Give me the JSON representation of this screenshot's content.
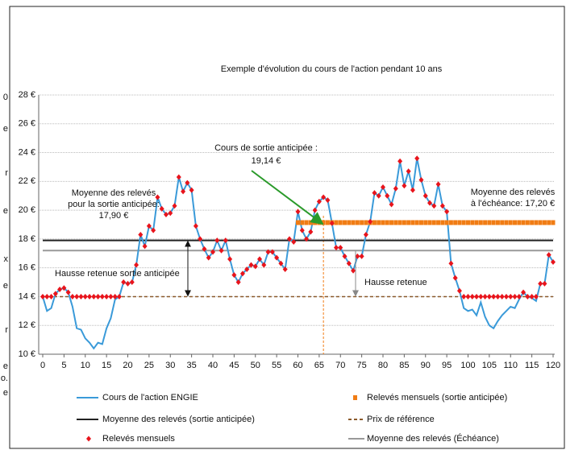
{
  "side_fragments": [
    "0",
    "e",
    "r",
    "e",
    "x",
    "e",
    "r",
    "e",
    "o.",
    "e"
  ],
  "chart_data": {
    "type": "line",
    "title": "Exemple d'évolution du cours de l'action pendant 10 ans",
    "x": [
      0,
      1,
      2,
      3,
      4,
      5,
      6,
      7,
      8,
      9,
      10,
      11,
      12,
      13,
      14,
      15,
      16,
      17,
      18,
      19,
      20,
      21,
      22,
      23,
      24,
      25,
      26,
      27,
      28,
      29,
      30,
      31,
      32,
      33,
      34,
      35,
      36,
      37,
      38,
      39,
      40,
      41,
      42,
      43,
      44,
      45,
      46,
      47,
      48,
      49,
      50,
      51,
      52,
      53,
      54,
      55,
      56,
      57,
      58,
      59,
      60,
      61,
      62,
      63,
      64,
      65,
      66,
      67,
      68,
      69,
      70,
      71,
      72,
      73,
      74,
      75,
      76,
      77,
      78,
      79,
      80,
      81,
      82,
      83,
      84,
      85,
      86,
      87,
      88,
      89,
      90,
      91,
      92,
      93,
      94,
      95,
      96,
      97,
      98,
      99,
      100,
      101,
      102,
      103,
      104,
      105,
      106,
      107,
      108,
      109,
      110,
      111,
      112,
      113,
      114,
      115,
      116,
      117,
      118,
      119,
      120
    ],
    "xlim": [
      0,
      120
    ],
    "xticks": [
      0,
      5,
      10,
      15,
      20,
      25,
      30,
      35,
      40,
      45,
      50,
      55,
      60,
      65,
      70,
      75,
      80,
      85,
      90,
      95,
      100,
      105,
      110,
      115,
      120
    ],
    "ylim": [
      10,
      28
    ],
    "yticks": [
      {
        "value": 10,
        "label": "10 €"
      },
      {
        "value": 12,
        "label": "12 €"
      },
      {
        "value": 14,
        "label": "14 €"
      },
      {
        "value": 16,
        "label": "16 €"
      },
      {
        "value": 18,
        "label": "18 €"
      },
      {
        "value": 20,
        "label": "20 €"
      },
      {
        "value": 22,
        "label": "22 €"
      },
      {
        "value": 24,
        "label": "24 €"
      },
      {
        "value": 26,
        "label": "26 €"
      },
      {
        "value": 28,
        "label": "28 €"
      }
    ],
    "grid": true,
    "exit_month": 66,
    "series": [
      {
        "name": "Cours de l'action ENGIE",
        "color": "#3a9ad9",
        "style": "line",
        "values": [
          14,
          13,
          13.2,
          14.2,
          14.5,
          14.6,
          14.3,
          13.3,
          11.8,
          11.7,
          11.1,
          10.8,
          10.4,
          10.8,
          10.7,
          11.8,
          12.5,
          13.8,
          14.0,
          15.0,
          14.9,
          15.0,
          16.2,
          18.3,
          17.5,
          18.9,
          18.6,
          20.9,
          20.1,
          19.7,
          19.8,
          20.3,
          22.3,
          21.3,
          21.9,
          21.4,
          18.9,
          18.0,
          17.3,
          16.7,
          17.1,
          17.9,
          17.2,
          17.9,
          16.6,
          15.5,
          15.0,
          15.6,
          15.9,
          16.2,
          16.1,
          16.6,
          16.2,
          17.1,
          17.1,
          16.7,
          16.3,
          15.9,
          18.0,
          17.8,
          19.9,
          18.6,
          18.0,
          18.5,
          20.0,
          20.6,
          20.9,
          20.7,
          19.1,
          17.4,
          17.4,
          16.8,
          16.3,
          15.8,
          16.8,
          16.8,
          18.3,
          19.2,
          21.2,
          21.0,
          21.6,
          21.0,
          20.4,
          21.5,
          23.4,
          21.7,
          22.7,
          21.4,
          23.6,
          22.1,
          21.0,
          20.5,
          20.3,
          21.8,
          20.3,
          19.9,
          16.3,
          15.3,
          14.4,
          13.2,
          13.0,
          13.1,
          12.7,
          13.6,
          12.6,
          12.0,
          11.8,
          12.3,
          12.7,
          13.0,
          13.3,
          13.2,
          13.8,
          14.3,
          14.0,
          13.9,
          13.7,
          14.9,
          14.9,
          16.9,
          16.4
        ]
      },
      {
        "name": "Moyenne des relevés (sortie anticipée)",
        "color": "#222222",
        "style": "line",
        "x": [
          0,
          120
        ],
        "values": [
          17.9,
          17.9
        ]
      },
      {
        "name": "Relevés mensuels",
        "color": "#e8141c",
        "style": "diamond",
        "values": [
          14,
          14,
          14,
          14.2,
          14.5,
          14.6,
          14.3,
          14,
          14,
          14,
          14,
          14,
          14,
          14,
          14,
          14,
          14,
          14,
          14,
          15.0,
          14.9,
          15.0,
          16.2,
          18.3,
          17.5,
          18.9,
          18.6,
          20.9,
          20.1,
          19.7,
          19.8,
          20.3,
          22.3,
          21.3,
          21.9,
          21.4,
          18.9,
          18.0,
          17.3,
          16.7,
          17.1,
          17.9,
          17.2,
          17.9,
          16.6,
          15.5,
          15.0,
          15.6,
          15.9,
          16.2,
          16.1,
          16.6,
          16.2,
          17.1,
          17.1,
          16.7,
          16.3,
          15.9,
          18.0,
          17.8,
          19.9,
          18.6,
          18.0,
          18.5,
          20.0,
          20.6,
          20.9,
          20.7,
          19.1,
          17.4,
          17.4,
          16.8,
          16.3,
          15.8,
          16.8,
          16.8,
          18.3,
          19.2,
          21.2,
          21.0,
          21.6,
          21.0,
          20.4,
          21.5,
          23.4,
          21.7,
          22.7,
          21.4,
          23.6,
          22.1,
          21.0,
          20.5,
          20.3,
          21.8,
          20.3,
          19.9,
          16.3,
          15.3,
          14.4,
          14,
          14,
          14,
          14,
          14,
          14,
          14,
          14,
          14,
          14,
          14,
          14,
          14,
          14,
          14.3,
          14,
          14,
          14,
          14.9,
          14.9,
          16.9,
          16.4
        ]
      },
      {
        "name": "Relevés mensuels (sortie anticipée)",
        "color": "#f07c14",
        "style": "square",
        "x": [
          60,
          61,
          62,
          63,
          64,
          65,
          66,
          67,
          68,
          69,
          70,
          71,
          72,
          73,
          74,
          75,
          76,
          77,
          78,
          79,
          80,
          81,
          82,
          83,
          84,
          85,
          86,
          87,
          88,
          89,
          90,
          91,
          92,
          93,
          94,
          95,
          96,
          97,
          98,
          99,
          100,
          101,
          102,
          103,
          104,
          105,
          106,
          107,
          108,
          109,
          110,
          111,
          112,
          113,
          114,
          115,
          116,
          117,
          118,
          119,
          120
        ],
        "values": [
          19.14,
          19.14,
          19.14,
          19.14,
          19.14,
          19.14,
          19.14,
          19.14,
          19.14,
          19.14,
          19.14,
          19.14,
          19.14,
          19.14,
          19.14,
          19.14,
          19.14,
          19.14,
          19.14,
          19.14,
          19.14,
          19.14,
          19.14,
          19.14,
          19.14,
          19.14,
          19.14,
          19.14,
          19.14,
          19.14,
          19.14,
          19.14,
          19.14,
          19.14,
          19.14,
          19.14,
          19.14,
          19.14,
          19.14,
          19.14,
          19.14,
          19.14,
          19.14,
          19.14,
          19.14,
          19.14,
          19.14,
          19.14,
          19.14,
          19.14,
          19.14,
          19.14,
          19.14,
          19.14,
          19.14,
          19.14,
          19.14,
          19.14,
          19.14,
          19.14,
          19.14
        ]
      },
      {
        "name": "Prix de référence",
        "color": "#8b5a2b",
        "style": "dash",
        "x": [
          0,
          120
        ],
        "values": [
          14,
          14
        ]
      },
      {
        "name": "Moyenne des relevés (Échéance)",
        "color": "#999999",
        "style": "line",
        "x": [
          0,
          120
        ],
        "values": [
          17.2,
          17.2
        ]
      }
    ],
    "annotations": {
      "exit": [
        "Cours de sortie anticipée :",
        "19,14 €"
      ],
      "avg_exit": [
        "Moyenne des relevés",
        "pour la sortie anticipée:",
        "17,90 €"
      ],
      "avg_end": [
        "Moyenne des relevés",
        "à l'échéance: 17,20 €"
      ],
      "gain_exit": "Hausse retenue sortie anticipée",
      "gain_end": "Hausse retenue"
    }
  }
}
